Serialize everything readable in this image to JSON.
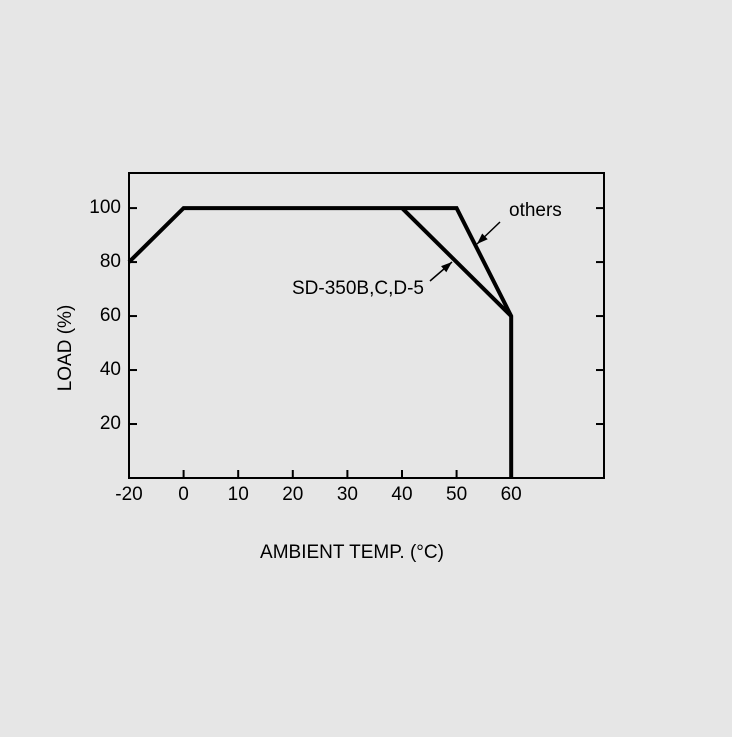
{
  "chart_data": {
    "type": "line",
    "x_label": "AMBIENT TEMP. (°C)",
    "y_label": "LOAD (%)",
    "series": [
      {
        "name": "others",
        "color": "#000000",
        "x": [
          -20,
          0,
          50,
          60,
          60
        ],
        "values": [
          80,
          100,
          100,
          60,
          0
        ]
      },
      {
        "name": "SD-350B,C,D-5",
        "color": "#000000",
        "x": [
          40,
          60
        ],
        "values": [
          100,
          60
        ]
      }
    ],
    "xlim": [
      -20,
      77
    ],
    "xticks": [
      -20,
      0,
      10,
      20,
      30,
      40,
      50,
      60
    ],
    "ylim": [
      0,
      113
    ],
    "yticks": [
      20,
      40,
      60,
      80,
      100
    ]
  }
}
